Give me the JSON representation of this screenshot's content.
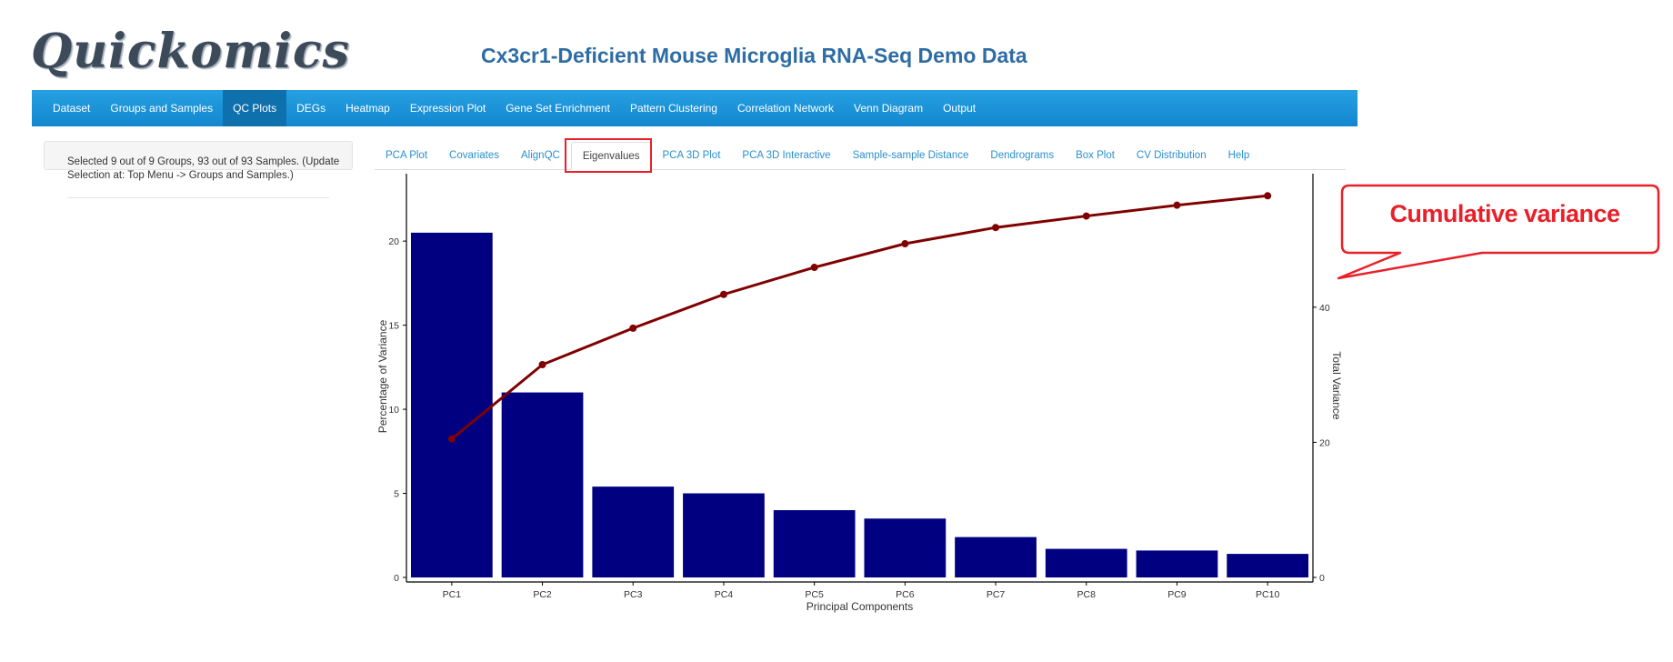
{
  "app": {
    "logo_text": "Quickomics",
    "title": "Cx3cr1-Deficient Mouse Microglia RNA-Seq Demo Data"
  },
  "navbar": {
    "items": [
      {
        "label": "Dataset"
      },
      {
        "label": "Groups and Samples"
      },
      {
        "label": "QC Plots",
        "active": true
      },
      {
        "label": "DEGs"
      },
      {
        "label": "Heatmap"
      },
      {
        "label": "Expression Plot"
      },
      {
        "label": "Gene Set Enrichment"
      },
      {
        "label": "Pattern Clustering"
      },
      {
        "label": "Correlation Network"
      },
      {
        "label": "Venn Diagram"
      },
      {
        "label": "Output"
      }
    ]
  },
  "sidebar": {
    "selection_text": "Selected 9 out of 9 Groups, 93 out of 93 Samples. (Update Selection at: Top Menu -> Groups and Samples.)"
  },
  "tabs": {
    "items": [
      {
        "label": "PCA Plot"
      },
      {
        "label": "Covariates"
      },
      {
        "label": "AlignQC"
      },
      {
        "label": "Eigenvalues",
        "active": true
      },
      {
        "label": "PCA 3D Plot"
      },
      {
        "label": "PCA 3D Interactive"
      },
      {
        "label": "Sample-sample Distance"
      },
      {
        "label": "Dendrograms"
      },
      {
        "label": "Box Plot"
      },
      {
        "label": "CV Distribution"
      },
      {
        "label": "Help"
      }
    ]
  },
  "annotation": {
    "callout_text": "Cumulative variance",
    "color": "#e8202a"
  },
  "chart_data": {
    "type": "bar",
    "categories": [
      "PC1",
      "PC2",
      "PC3",
      "PC4",
      "PC5",
      "PC6",
      "PC7",
      "PC8",
      "PC9",
      "PC10"
    ],
    "values": [
      20.5,
      11.0,
      5.4,
      5.0,
      4.0,
      3.5,
      2.4,
      1.7,
      1.6,
      1.4
    ],
    "cumulative": [
      20.5,
      31.5,
      36.9,
      41.9,
      45.9,
      49.4,
      51.8,
      53.5,
      55.1,
      56.5
    ],
    "xlabel": "Principal Components",
    "ylabel": "Percentage of Variance",
    "y2label": "Total Variance",
    "ylim": [
      0,
      23.9
    ],
    "y2lim": [
      0,
      59.5
    ],
    "yticks": [
      0,
      5,
      10,
      15,
      20
    ],
    "y2ticks": [
      0,
      20,
      40
    ],
    "bar_color": "#000080",
    "line_color": "#800000",
    "grid": false
  }
}
